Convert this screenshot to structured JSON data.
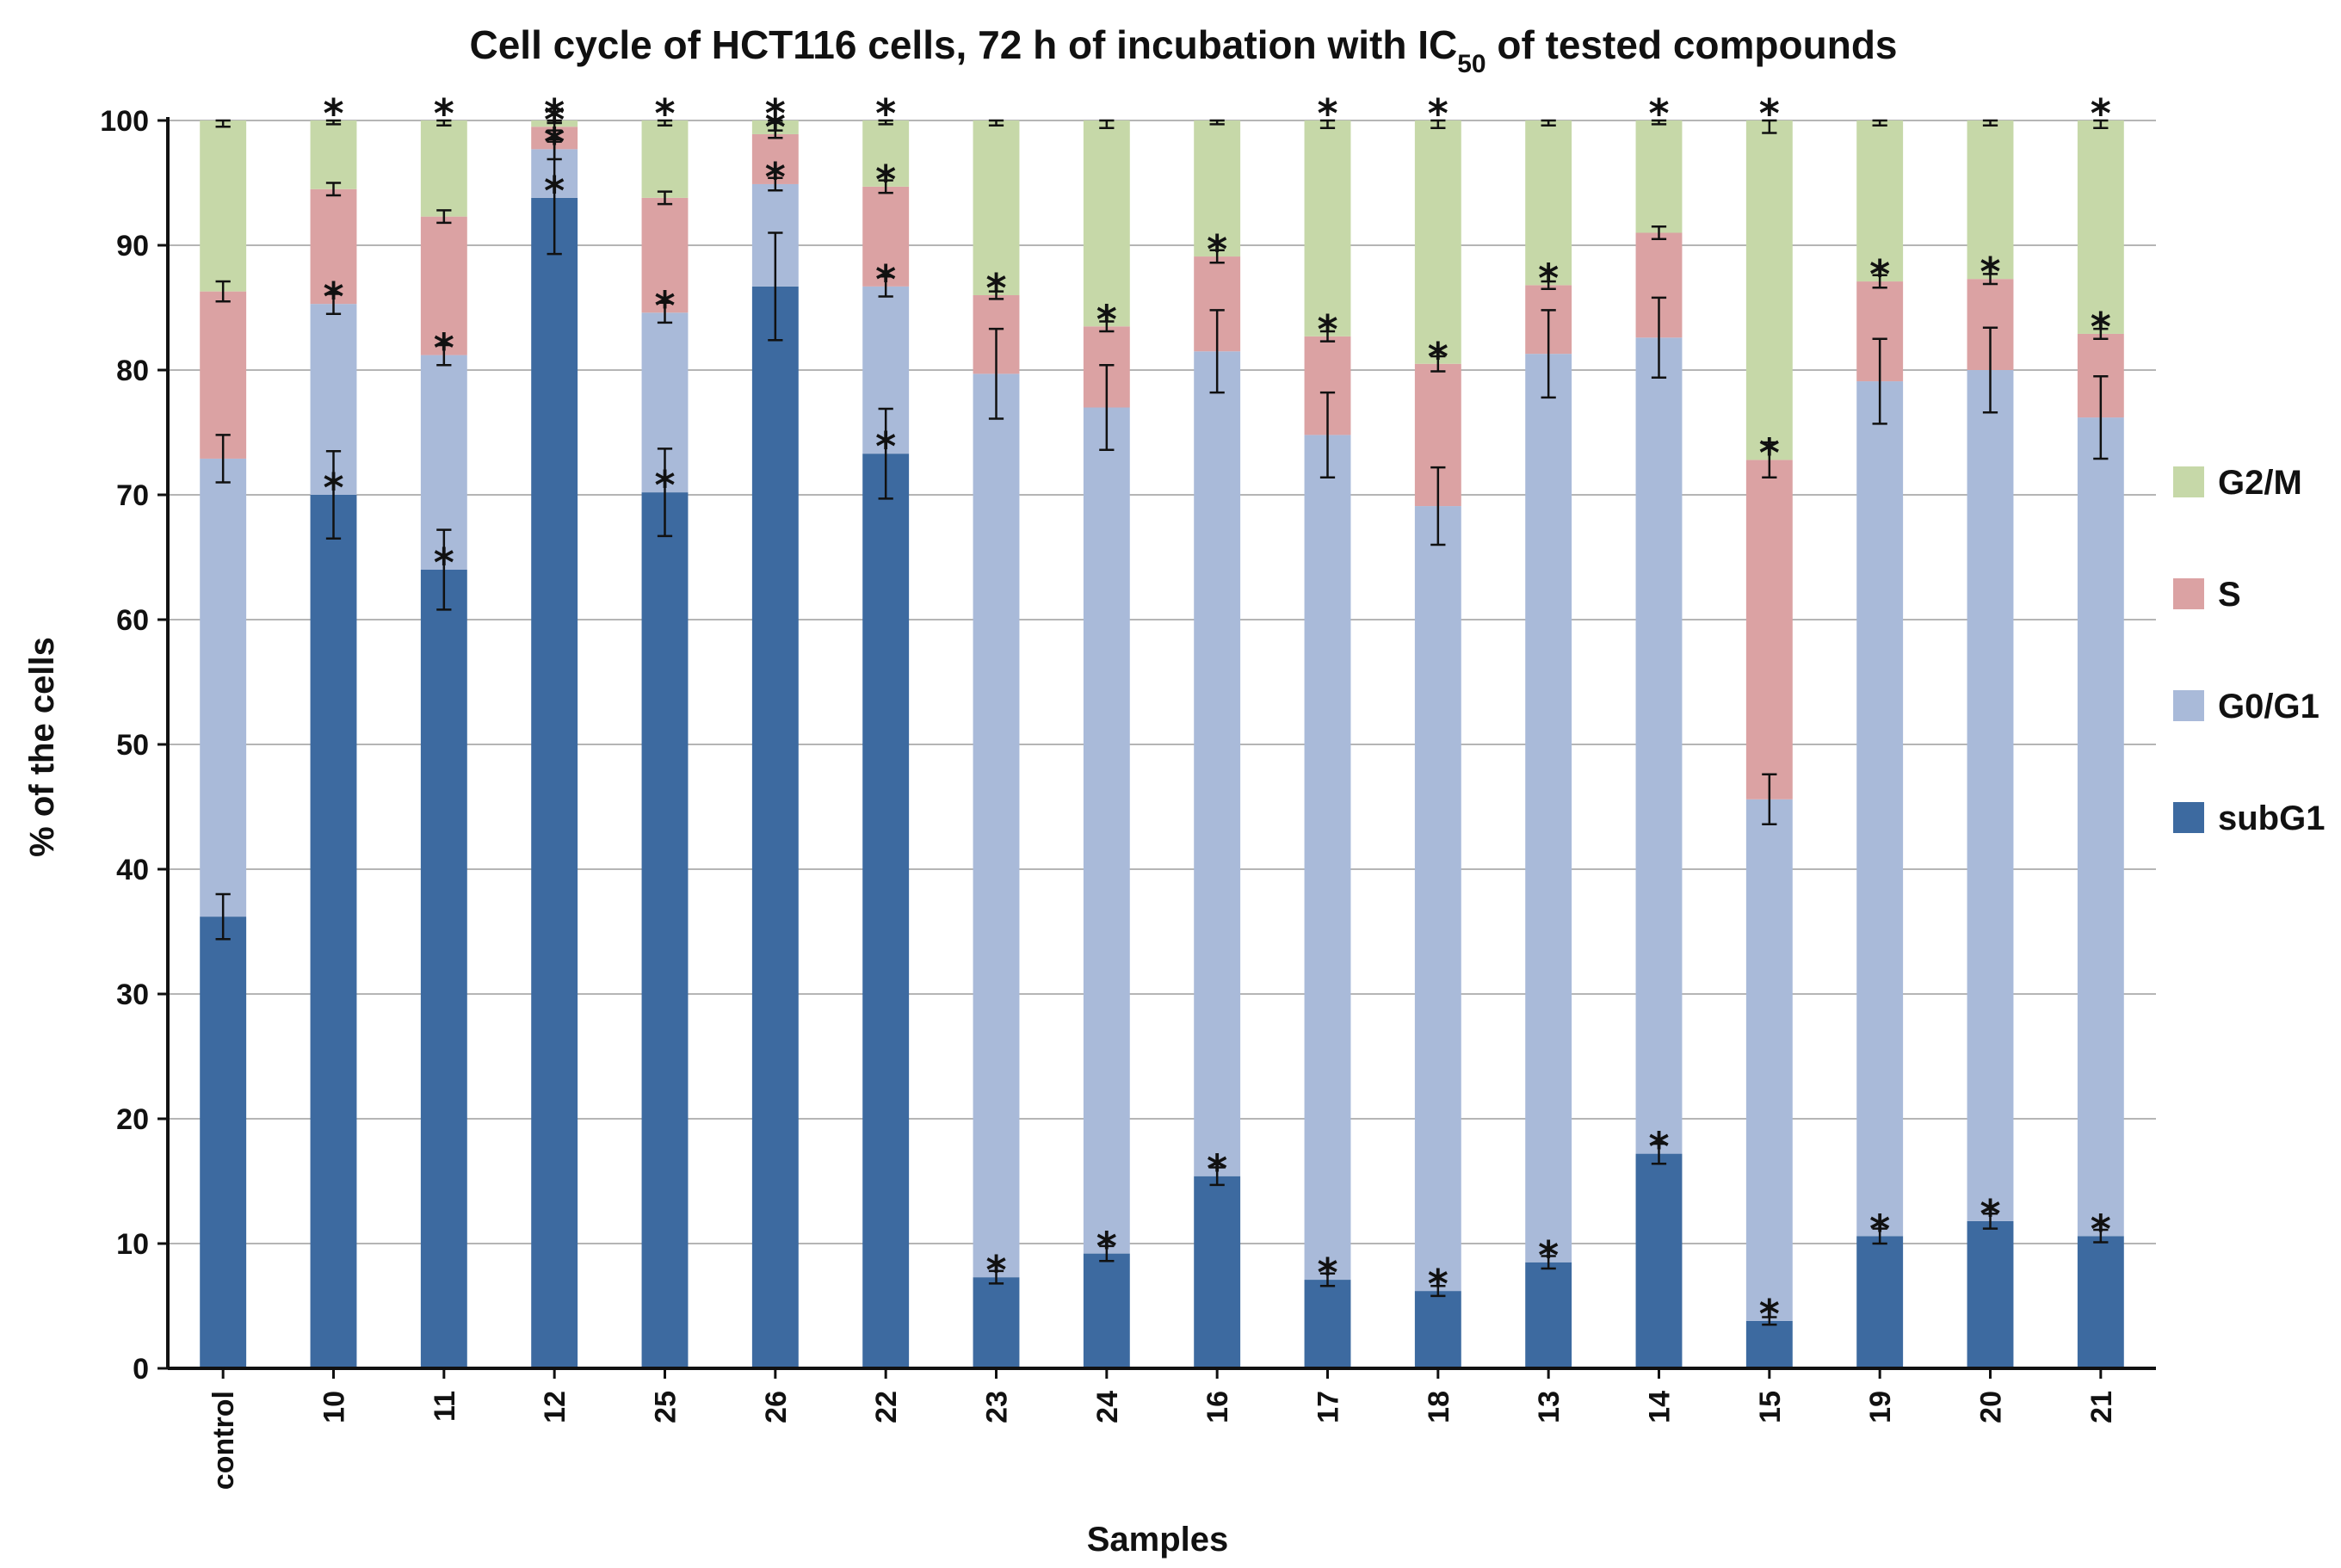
{
  "chart_data": {
    "type": "bar",
    "stacked": true,
    "title": "Cell cycle of HCT116 cells, 72 h of incubation with IC",
    "title_subscript": "50",
    "title_suffix": " of  tested compounds",
    "xlabel": "Samples",
    "ylabel": "% of the cells",
    "ylim": [
      0,
      100
    ],
    "yticks": [
      0,
      10,
      20,
      30,
      40,
      50,
      60,
      70,
      80,
      90,
      100
    ],
    "grid": true,
    "legend_position": "right",
    "categories": [
      "control",
      "10",
      "11",
      "12",
      "25",
      "26",
      "22",
      "23",
      "24",
      "16",
      "17",
      "18",
      "13",
      "14",
      "15",
      "19",
      "20",
      "21"
    ],
    "series": [
      {
        "name": "subG1",
        "color": "#3d6aa0",
        "values": [
          36.2,
          70.0,
          64.0,
          93.8,
          70.2,
          86.7,
          73.3,
          7.3,
          9.2,
          15.4,
          7.1,
          6.2,
          8.5,
          17.2,
          3.8,
          10.6,
          11.8,
          10.6
        ],
        "errors": [
          1.8,
          3.5,
          3.2,
          4.5,
          3.5,
          4.3,
          3.6,
          0.5,
          0.6,
          0.7,
          0.5,
          0.4,
          0.5,
          0.8,
          0.3,
          0.6,
          0.6,
          0.5
        ]
      },
      {
        "name": "G0/G1",
        "color": "#a9bad9",
        "values": [
          36.7,
          15.3,
          17.2,
          3.9,
          14.4,
          8.2,
          13.4,
          72.4,
          67.8,
          66.1,
          67.7,
          62.9,
          72.8,
          65.4,
          41.8,
          68.5,
          68.2,
          65.6
        ],
        "errors": [
          1.9,
          0.8,
          0.8,
          0.8,
          0.8,
          0.5,
          0.8,
          3.6,
          3.4,
          3.3,
          3.4,
          3.1,
          3.5,
          3.2,
          2.0,
          3.4,
          3.4,
          3.3
        ]
      },
      {
        "name": "S",
        "color": "#dba2a3",
        "values": [
          13.4,
          9.2,
          11.1,
          1.8,
          9.2,
          4.0,
          8.0,
          6.3,
          6.5,
          7.6,
          7.9,
          11.4,
          5.5,
          8.4,
          27.2,
          8.0,
          7.3,
          6.7
        ],
        "errors": [
          0.8,
          0.5,
          0.5,
          0.3,
          0.5,
          0.3,
          0.5,
          0.3,
          0.4,
          0.5,
          0.4,
          0.6,
          0.3,
          0.5,
          1.4,
          0.5,
          0.4,
          0.4
        ]
      },
      {
        "name": "G2/M",
        "color": "#c6d8a8",
        "values": [
          13.7,
          5.5,
          7.7,
          0.5,
          6.2,
          1.1,
          5.3,
          14.0,
          16.5,
          10.9,
          17.3,
          19.5,
          13.2,
          9.0,
          27.2,
          12.9,
          12.7,
          17.1
        ],
        "errors": [
          0.5,
          0.3,
          0.4,
          0.2,
          0.4,
          0.2,
          0.3,
          0.4,
          0.6,
          0.3,
          0.6,
          0.6,
          0.4,
          0.3,
          1.0,
          0.4,
          0.4,
          0.6
        ]
      }
    ],
    "significance_marks": [
      {
        "category": "10",
        "series": "subG1",
        "label": "*"
      },
      {
        "category": "10",
        "series": "G0/G1",
        "label": "*"
      },
      {
        "category": "10",
        "series": "G2/M",
        "label": "*"
      },
      {
        "category": "11",
        "series": "subG1",
        "label": "*"
      },
      {
        "category": "11",
        "series": "G0/G1",
        "label": "*"
      },
      {
        "category": "11",
        "series": "G2/M",
        "label": "*"
      },
      {
        "category": "12",
        "series": "subG1",
        "label": "*"
      },
      {
        "category": "12",
        "series": "G0/G1",
        "label": "*"
      },
      {
        "category": "12",
        "series": "S",
        "label": "*"
      },
      {
        "category": "12",
        "series": "G2/M",
        "label": "*"
      },
      {
        "category": "25",
        "series": "subG1",
        "label": "*"
      },
      {
        "category": "25",
        "series": "G0/G1",
        "label": "*"
      },
      {
        "category": "25",
        "series": "G2/M",
        "label": "*"
      },
      {
        "category": "26",
        "series": "G0/G1",
        "label": "*"
      },
      {
        "category": "26",
        "series": "S",
        "label": "*"
      },
      {
        "category": "26",
        "series": "G2/M",
        "label": "*"
      },
      {
        "category": "22",
        "series": "subG1",
        "label": "*"
      },
      {
        "category": "22",
        "series": "G0/G1",
        "label": "*"
      },
      {
        "category": "22",
        "series": "S",
        "label": "*"
      },
      {
        "category": "22",
        "series": "G2/M",
        "label": "*"
      },
      {
        "category": "23",
        "series": "subG1",
        "label": "*"
      },
      {
        "category": "23",
        "series": "S",
        "label": "*"
      },
      {
        "category": "24",
        "series": "subG1",
        "label": "*"
      },
      {
        "category": "24",
        "series": "S",
        "label": "*"
      },
      {
        "category": "16",
        "series": "subG1",
        "label": "*"
      },
      {
        "category": "16",
        "series": "S",
        "label": "*"
      },
      {
        "category": "17",
        "series": "subG1",
        "label": "*"
      },
      {
        "category": "17",
        "series": "S",
        "label": "*"
      },
      {
        "category": "17",
        "series": "G2/M",
        "label": "*"
      },
      {
        "category": "18",
        "series": "subG1",
        "label": "*"
      },
      {
        "category": "18",
        "series": "S",
        "label": "*"
      },
      {
        "category": "18",
        "series": "G2/M",
        "label": "*"
      },
      {
        "category": "13",
        "series": "subG1",
        "label": "*"
      },
      {
        "category": "13",
        "series": "S",
        "label": "*"
      },
      {
        "category": "14",
        "series": "subG1",
        "label": "*"
      },
      {
        "category": "14",
        "series": "G2/M",
        "label": "*"
      },
      {
        "category": "15",
        "series": "subG1",
        "label": "*"
      },
      {
        "category": "15",
        "series": "S",
        "label": "*"
      },
      {
        "category": "15",
        "series": "G2/M",
        "label": "*"
      },
      {
        "category": "19",
        "series": "subG1",
        "label": "*"
      },
      {
        "category": "19",
        "series": "S",
        "label": "*"
      },
      {
        "category": "20",
        "series": "subG1",
        "label": "*"
      },
      {
        "category": "20",
        "series": "S",
        "label": "*"
      },
      {
        "category": "21",
        "series": "subG1",
        "label": "*"
      },
      {
        "category": "21",
        "series": "S",
        "label": "*"
      },
      {
        "category": "21",
        "series": "G2/M",
        "label": "*"
      }
    ],
    "legend_order": [
      "G2/M",
      "S",
      "G0/G1",
      "subG1"
    ]
  }
}
